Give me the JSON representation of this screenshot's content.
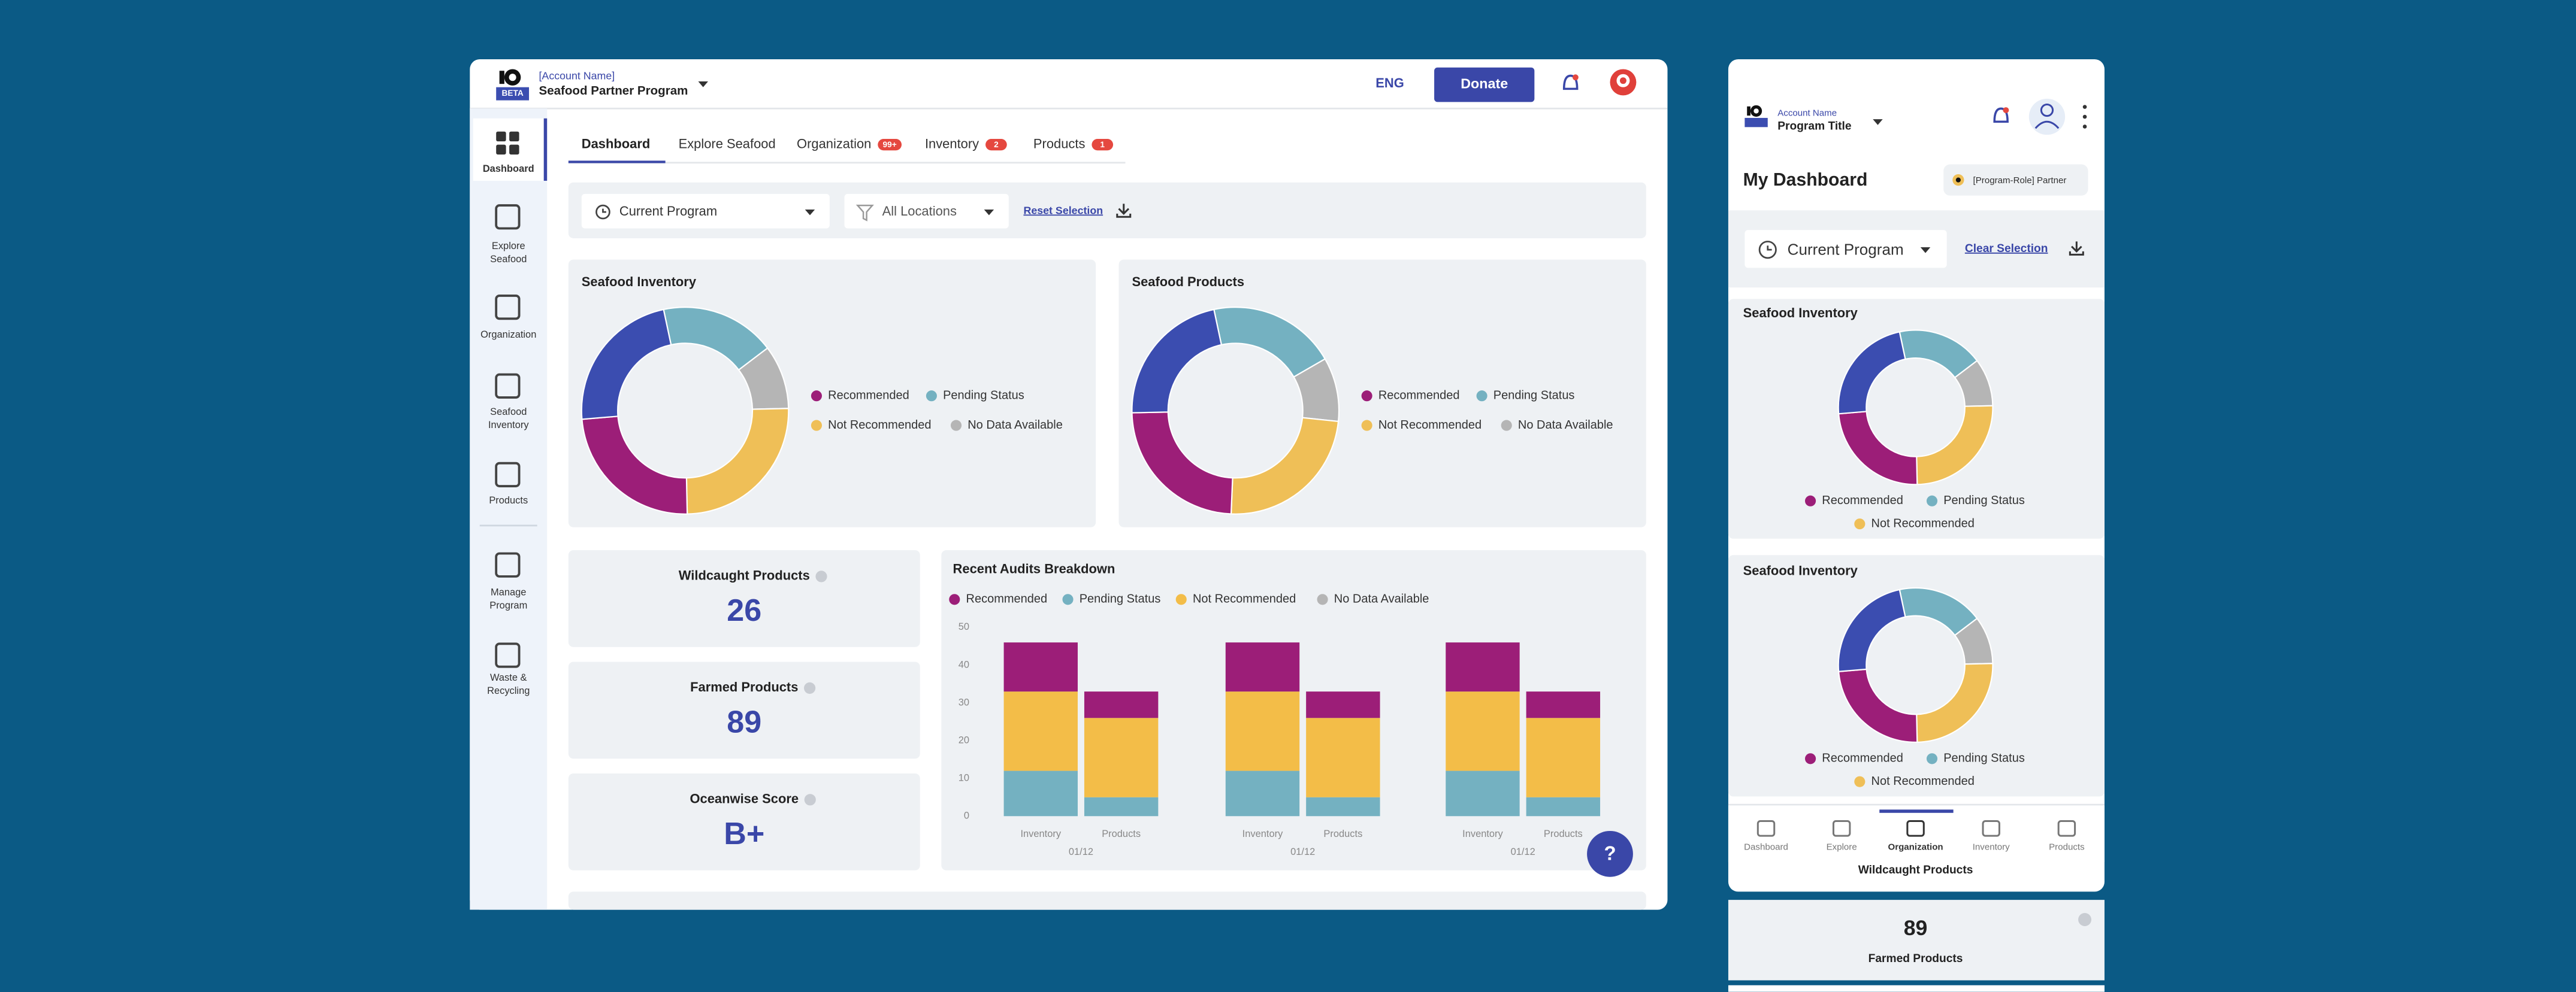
{
  "header": {
    "beta": "BETA",
    "account_label": "[Account Name]",
    "program": "Seafood Partner Program",
    "language": "ENG",
    "donate": "Donate"
  },
  "sidebar": [
    [
      "Dashboard"
    ],
    [
      "Explore",
      "Seafood"
    ],
    [
      "Organization"
    ],
    [
      "Seafood",
      "Inventory"
    ],
    [
      "Products"
    ],
    [
      "Manage",
      "Program"
    ],
    [
      "Waste &",
      "Recycling"
    ]
  ],
  "tabs": [
    {
      "label": "Dashboard"
    },
    {
      "label": "Explore Seafood"
    },
    {
      "label": "Organization",
      "badge": "99+"
    },
    {
      "label": "Inventory",
      "badge": 2
    },
    {
      "label": "Products",
      "badge": 1
    }
  ],
  "filters": {
    "program": "Current Program",
    "location": "All Locations",
    "reset": "Reset Selection"
  },
  "stats": [
    {
      "label": "Wildcaught Products",
      "value": 26
    },
    {
      "label": "Farmed Products",
      "value": 89
    },
    {
      "label": "Oceanwise Score",
      "value": "B+"
    }
  ],
  "help": "?",
  "chart_data": [
    {
      "type": "pie",
      "title": "Seafood Inventory",
      "values": [
        18,
        10,
        25,
        24,
        23
      ],
      "colors": [
        "#74b1c1",
        "#b5b5b5",
        "#efbf57",
        "#9c1e78",
        "#3b4db0"
      ],
      "legend": [
        {
          "label": "Recommended",
          "color": "#9c1e78"
        },
        {
          "label": "Pending Status",
          "color": "#74b1c1"
        },
        {
          "label": "Not Recommended",
          "color": "#efbf57"
        },
        {
          "label": "No Data Available",
          "color": "#b5b5b5"
        }
      ]
    },
    {
      "type": "pie",
      "title": "Seafood Products",
      "values": [
        20,
        10,
        24,
        24,
        22
      ],
      "colors": [
        "#74b1c1",
        "#b5b5b5",
        "#efbf57",
        "#9c1e78",
        "#3b4db0"
      ],
      "legend": [
        {
          "label": "Recommended",
          "color": "#9c1e78"
        },
        {
          "label": "Pending Status",
          "color": "#74b1c1"
        },
        {
          "label": "Not Recommended",
          "color": "#efbf57"
        },
        {
          "label": "No Data Available",
          "color": "#b5b5b5"
        }
      ]
    },
    {
      "type": "bar",
      "title": "Recent Audits Breakdown",
      "stacked": true,
      "categories": [
        "Inventory",
        "Products",
        "Inventory",
        "Products",
        "Inventory",
        "Products"
      ],
      "groups": [
        "01/12",
        "01/12",
        "01/12"
      ],
      "series": [
        {
          "name": "Recommended",
          "color": "#9c1e78",
          "values": [
            13,
            7,
            13,
            7,
            13,
            7
          ]
        },
        {
          "name": "Pending Status",
          "color": "#74b1c1",
          "values": [
            12,
            5,
            12,
            5,
            12,
            5
          ]
        },
        {
          "name": "Not Recommended",
          "color": "#f3bd48",
          "values": [
            21,
            21,
            21,
            21,
            21,
            21
          ]
        },
        {
          "name": "No Data Available",
          "color": "#b5b5b5",
          "values": [
            0,
            0,
            0,
            0,
            0,
            0
          ]
        }
      ],
      "ylim": [
        0,
        50
      ],
      "yticks": [
        0,
        10,
        20,
        30,
        40,
        50
      ]
    },
    {
      "type": "pie",
      "title": "Seafood Inventory",
      "values": [
        18,
        10,
        25,
        24,
        23
      ],
      "colors": [
        "#74b1c1",
        "#b5b5b5",
        "#efbf57",
        "#9c1e78",
        "#3b4db0"
      ],
      "legend": [
        {
          "label": "Recommended",
          "color": "#9c1e78"
        },
        {
          "label": "Pending Status",
          "color": "#74b1c1"
        },
        {
          "label": "Not Recommended",
          "color": "#efbf57"
        }
      ]
    },
    {
      "type": "pie",
      "title": "Seafood Inventory",
      "values": [
        18,
        10,
        25,
        24,
        23
      ],
      "colors": [
        "#74b1c1",
        "#b5b5b5",
        "#efbf57",
        "#9c1e78",
        "#3b4db0"
      ],
      "legend": [
        {
          "label": "Recommended",
          "color": "#9c1e78"
        },
        {
          "label": "Pending Status",
          "color": "#74b1c1"
        },
        {
          "label": "Not Recommended",
          "color": "#efbf57"
        }
      ]
    }
  ],
  "mobile": {
    "account_label": "Account Name",
    "program": "Program Title",
    "heading": "My Dashboard",
    "role_badge": "[Program-Role] Partner",
    "filter": "Current Program",
    "clear": "Clear Selection",
    "nav": [
      "Dashboard",
      "Explore",
      "Organization",
      "Inventory",
      "Products"
    ],
    "stats": [
      {
        "label": "Wildcaught Products"
      },
      {
        "value": 89,
        "label": "Farmed Products"
      }
    ]
  }
}
